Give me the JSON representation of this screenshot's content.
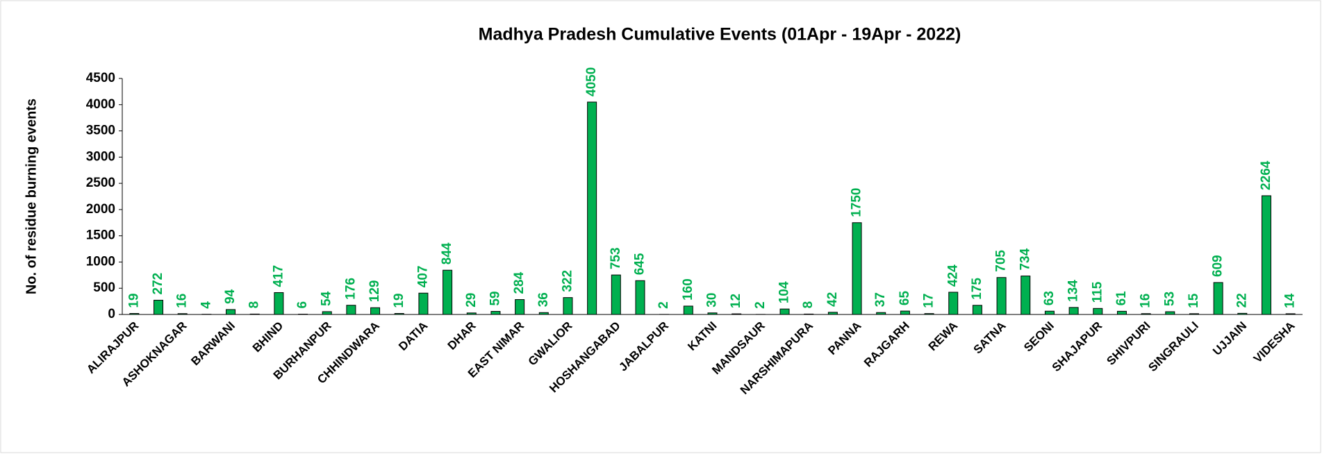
{
  "chart_data": {
    "type": "bar",
    "title": "Madhya Pradesh Cumulative Events (01Apr - 19Apr - 2022)",
    "y_label": "No. of residue burning events",
    "categories": [
      "ALIRAJPUR",
      null,
      "ASHOKNAGAR",
      null,
      "BARWANI",
      null,
      "BHIND",
      null,
      "BURHANPUR",
      null,
      "CHHINDWARA",
      null,
      "DATIA",
      null,
      "DHAR",
      null,
      "EAST NIMAR",
      null,
      "GWALIOR",
      null,
      "HOSHANGABAD",
      null,
      "JABALPUR",
      null,
      "KATNI",
      null,
      "MANDSAUR",
      null,
      "NARSHIMAPURA",
      null,
      "PANNA",
      null,
      "RAJGARH",
      null,
      "REWA",
      null,
      "SATNA",
      null,
      "SEONI",
      null,
      "SHAJAPUR",
      null,
      "SHIVPURI",
      null,
      "SINGRAULI",
      null,
      "UJJAIN",
      null,
      "VIDESHA"
    ],
    "values": [
      19,
      272,
      16,
      4,
      94,
      8,
      417,
      6,
      54,
      176,
      129,
      19,
      407,
      844,
      29,
      59,
      284,
      36,
      322,
      4050,
      753,
      645,
      2,
      160,
      30,
      12,
      2,
      104,
      8,
      42,
      1750,
      37,
      65,
      17,
      424,
      175,
      705,
      734,
      63,
      134,
      115,
      61,
      16,
      53,
      15,
      609,
      22,
      2264,
      14
    ],
    "color": "#00b050",
    "label_color": "#00b050",
    "ylim": [
      0,
      4500
    ],
    "yticks": [
      0,
      500,
      1000,
      1500,
      2000,
      2500,
      3000,
      3500,
      4000,
      4500
    ],
    "grid": false
  }
}
